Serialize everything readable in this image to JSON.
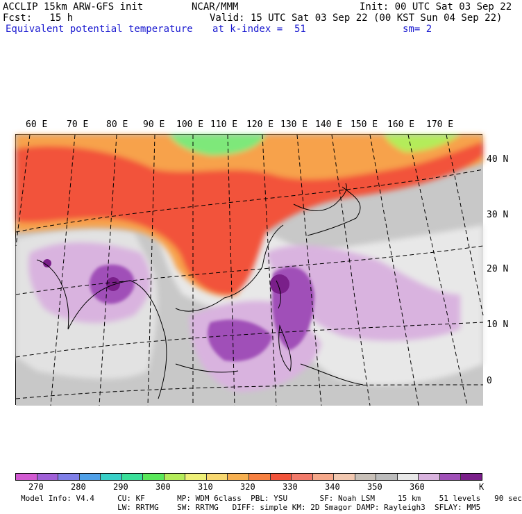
{
  "header": {
    "left1": "ACCLIP 15km ARW-GFS init",
    "left2": "Fcst:   15 h",
    "center1": "NCAR/MMM",
    "right1": "Init: 00 UTC Sat 03 Sep 22",
    "right2": "Valid: 15 UTC Sat 03 Sep 22 (00 KST Sun 04 Sep 22)",
    "field": "Equivalent potential temperature",
    "level": "at k-index =  51",
    "smooth": "sm= 2"
  },
  "map": {
    "lon_labels": [
      "60 E",
      "70 E",
      "80 E",
      "90 E",
      "100 E",
      "110 E",
      "120 E",
      "130 E",
      "140 E",
      "150 E",
      "160 E",
      "170 E"
    ],
    "lat_labels": [
      "40 N",
      "30 N",
      "20 N",
      "10 N",
      "0"
    ],
    "colors": {
      "land_dry_red": "#f2533a",
      "orange": "#f7a24c",
      "light_orange": "#f8c98a",
      "green": "#7ee87a",
      "gray": "#bdbdbd",
      "light_gray": "#e6e6e6",
      "lavender": "#d9b3df",
      "purple": "#a050b8",
      "dark_purple": "#7a1f8a"
    }
  },
  "colorbar": {
    "colors": [
      "#d25ad2",
      "#a060d8",
      "#7f7fe8",
      "#4fa0e8",
      "#38d0c8",
      "#3ae09a",
      "#5ae85a",
      "#b4ec5a",
      "#eef078",
      "#f8d870",
      "#f7b050",
      "#f78040",
      "#f2533a",
      "#f27a6a",
      "#f6a88a",
      "#f2c8b0",
      "#c8c0b8",
      "#bcbcbc",
      "#e8e8e8",
      "#d9b3df",
      "#a050b8",
      "#7a1f8a"
    ],
    "ticks": [
      "270",
      "280",
      "290",
      "300",
      "310",
      "320",
      "330",
      "340",
      "350",
      "360"
    ],
    "unit": "K"
  },
  "footer": {
    "line1": "Model Info: V4.4     CU: KF       MP: WDM 6class  PBL: YSU       SF: Noah LSM     15 km    51 levels   90 sec",
    "line2": "                     LW: RRTMG    SW: RRTMG   DIFF: simple KM: 2D Smagor DAMP: Rayleigh3  SFLAY: MM5"
  }
}
